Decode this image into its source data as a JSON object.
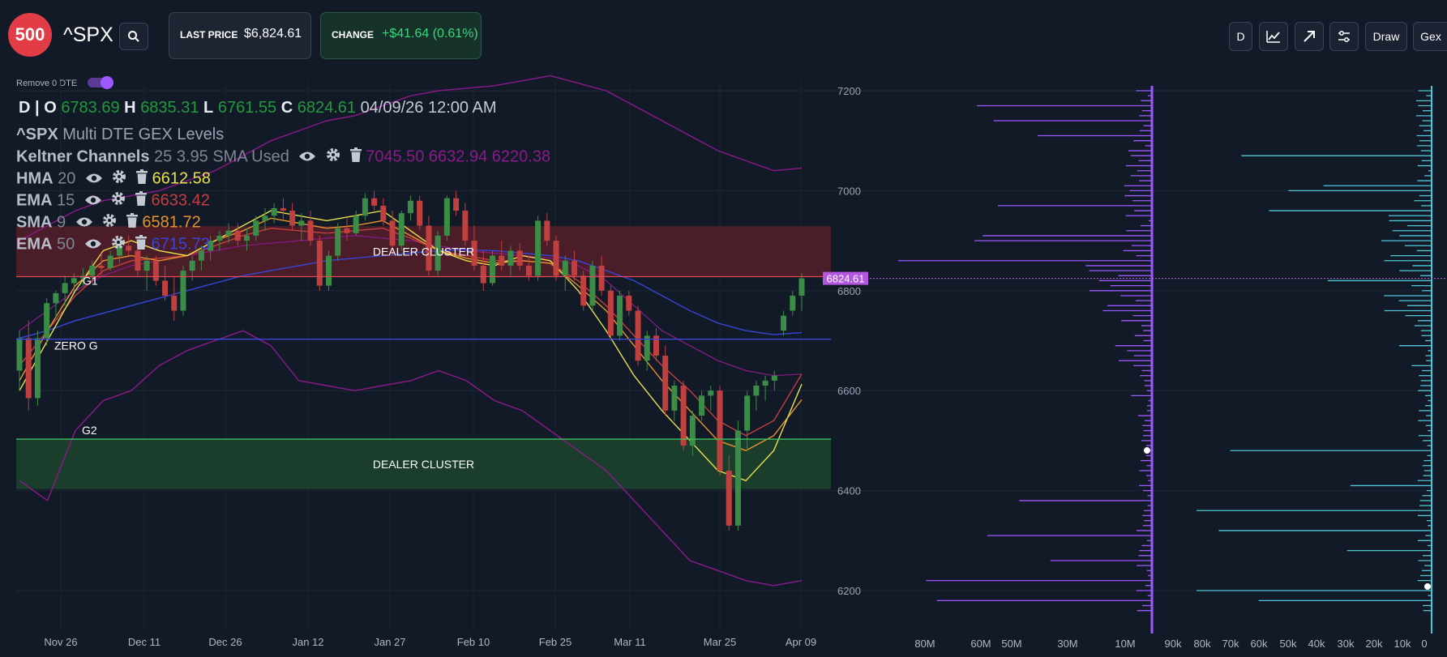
{
  "header": {
    "logo_text": "500",
    "ticker": "^SPX",
    "search_icon": "search-icon",
    "last_price_label": "LAST PRICE",
    "last_price_value": "$6,824.61",
    "change_label": "CHANGE",
    "change_value": "+$41.64 (0.61%)",
    "change_color": "#34d97a",
    "buttons": {
      "interval": "D",
      "indicators_icon": "line-chart-icon",
      "trend_icon": "arrow-up-right-icon",
      "settings_icon": "sliders-icon",
      "draw": "Draw",
      "gex": "Gex"
    }
  },
  "toggle": {
    "label": "Remove 0 DTE",
    "on": true
  },
  "ohlc": {
    "period": "D",
    "o_label": "O",
    "o": "6783.69",
    "h_label": "H",
    "h": "6835.31",
    "l_label": "L",
    "l": "6761.55",
    "c_label": "C",
    "c": "6824.61",
    "datetime": "04/09/26 12:00 AM"
  },
  "indicators": [
    {
      "name": "^SPX",
      "params": "Multi DTE GEX Levels",
      "values": "",
      "color": "#9aa2b1"
    },
    {
      "name": "Keltner Channels",
      "params": "25 3.95 SMA Used",
      "values": "7045.50 6632.94 6220.38",
      "color": "#8a1a8a"
    },
    {
      "name": "HMA",
      "params": "20",
      "values": "6612.58",
      "color": "#e7e04a"
    },
    {
      "name": "EMA",
      "params": "15",
      "values": "6633.42",
      "color": "#c43f3f"
    },
    {
      "name": "SMA",
      "params": "9",
      "values": "6581.72",
      "color": "#e8912b"
    },
    {
      "name": "EMA",
      "params": "50",
      "values": "6715.73",
      "color": "#3646d8"
    }
  ],
  "levels": {
    "g1": "G1",
    "zero_g": "ZERO G",
    "g2": "G2",
    "dealer_cluster_top": "DEALER CLUSTER",
    "dealer_cluster_bottom": "DEALER CLUSTER",
    "price_tag": "6824.61"
  },
  "chart_data": {
    "type": "candlestick",
    "y_axis": {
      "ticks": [
        "7200",
        "7000",
        "6800",
        "6600",
        "6400",
        "6200"
      ],
      "range": [
        6120,
        7220
      ]
    },
    "x_axis": {
      "ticks": [
        "Nov 26",
        "Dec 11",
        "Dec 26",
        "Jan 12",
        "Jan 27",
        "Feb 10",
        "Feb 25",
        "Mar 11",
        "Mar 25",
        "Apr 09"
      ]
    },
    "levels": {
      "g1": 6828,
      "zero_g": 6703,
      "g2": 6503
    },
    "zones": [
      {
        "label": "DEALER CLUSTER",
        "from": 6828,
        "to": 6929,
        "color": "#5e1f2a"
      },
      {
        "label": "DEALER CLUSTER",
        "from": 6403,
        "to": 6503,
        "color": "#1e4a2f"
      }
    ],
    "last_price": 6824.61,
    "candles": [
      [
        6640,
        6720,
        6600,
        6705
      ],
      [
        6705,
        6740,
        6560,
        6585
      ],
      [
        6585,
        6720,
        6570,
        6705
      ],
      [
        6705,
        6785,
        6690,
        6775
      ],
      [
        6775,
        6800,
        6745,
        6795
      ],
      [
        6795,
        6830,
        6770,
        6815
      ],
      [
        6815,
        6835,
        6800,
        6825
      ],
      [
        6825,
        6845,
        6810,
        6830
      ],
      [
        6830,
        6860,
        6815,
        6850
      ],
      [
        6850,
        6875,
        6830,
        6845
      ],
      [
        6845,
        6880,
        6840,
        6870
      ],
      [
        6870,
        6900,
        6855,
        6890
      ],
      [
        6890,
        6910,
        6870,
        6880
      ],
      [
        6880,
        6900,
        6830,
        6840
      ],
      [
        6840,
        6870,
        6800,
        6860
      ],
      [
        6860,
        6870,
        6810,
        6820
      ],
      [
        6820,
        6850,
        6780,
        6790
      ],
      [
        6790,
        6830,
        6740,
        6760
      ],
      [
        6760,
        6850,
        6750,
        6840
      ],
      [
        6840,
        6870,
        6820,
        6860
      ],
      [
        6860,
        6890,
        6840,
        6880
      ],
      [
        6880,
        6910,
        6860,
        6900
      ],
      [
        6900,
        6920,
        6880,
        6910
      ],
      [
        6910,
        6935,
        6895,
        6920
      ],
      [
        6920,
        6935,
        6890,
        6900
      ],
      [
        6900,
        6925,
        6880,
        6910
      ],
      [
        6910,
        6950,
        6900,
        6940
      ],
      [
        6940,
        6965,
        6920,
        6950
      ],
      [
        6950,
        6975,
        6935,
        6965
      ],
      [
        6965,
        6985,
        6940,
        6960
      ],
      [
        6960,
        6975,
        6920,
        6930
      ],
      [
        6930,
        6955,
        6900,
        6940
      ],
      [
        6940,
        6960,
        6890,
        6900
      ],
      [
        6900,
        6910,
        6800,
        6810
      ],
      [
        6810,
        6880,
        6800,
        6870
      ],
      [
        6870,
        6935,
        6860,
        6925
      ],
      [
        6925,
        6945,
        6900,
        6915
      ],
      [
        6915,
        6960,
        6910,
        6950
      ],
      [
        6950,
        6995,
        6940,
        6985
      ],
      [
        6985,
        7000,
        6960,
        6970
      ],
      [
        6970,
        6985,
        6930,
        6940
      ],
      [
        6940,
        6960,
        6870,
        6890
      ],
      [
        6890,
        6960,
        6880,
        6955
      ],
      [
        6955,
        6990,
        6940,
        6980
      ],
      [
        6980,
        6990,
        6920,
        6930
      ],
      [
        6930,
        6950,
        6830,
        6840
      ],
      [
        6840,
        6920,
        6830,
        6910
      ],
      [
        6910,
        6990,
        6900,
        6985
      ],
      [
        6985,
        7000,
        6950,
        6960
      ],
      [
        6960,
        6975,
        6890,
        6900
      ],
      [
        6900,
        6930,
        6840,
        6850
      ],
      [
        6850,
        6880,
        6800,
        6815
      ],
      [
        6815,
        6880,
        6810,
        6870
      ],
      [
        6870,
        6900,
        6840,
        6850
      ],
      [
        6850,
        6890,
        6830,
        6880
      ],
      [
        6880,
        6895,
        6840,
        6850
      ],
      [
        6850,
        6870,
        6820,
        6830
      ],
      [
        6830,
        6950,
        6820,
        6940
      ],
      [
        6940,
        6955,
        6890,
        6900
      ],
      [
        6900,
        6910,
        6820,
        6830
      ],
      [
        6830,
        6870,
        6800,
        6860
      ],
      [
        6860,
        6880,
        6820,
        6830
      ],
      [
        6830,
        6840,
        6760,
        6770
      ],
      [
        6770,
        6860,
        6760,
        6850
      ],
      [
        6850,
        6870,
        6790,
        6800
      ],
      [
        6800,
        6810,
        6700,
        6710
      ],
      [
        6710,
        6800,
        6700,
        6790
      ],
      [
        6790,
        6800,
        6750,
        6760
      ],
      [
        6760,
        6770,
        6650,
        6660
      ],
      [
        6660,
        6720,
        6640,
        6710
      ],
      [
        6710,
        6725,
        6660,
        6670
      ],
      [
        6670,
        6690,
        6550,
        6560
      ],
      [
        6560,
        6620,
        6540,
        6610
      ],
      [
        6610,
        6620,
        6480,
        6490
      ],
      [
        6490,
        6560,
        6470,
        6550
      ],
      [
        6550,
        6600,
        6540,
        6590
      ],
      [
        6590,
        6610,
        6560,
        6600
      ],
      [
        6600,
        6610,
        6430,
        6440
      ],
      [
        6440,
        6470,
        6320,
        6330
      ],
      [
        6330,
        6540,
        6320,
        6520
      ],
      [
        6520,
        6600,
        6480,
        6590
      ],
      [
        6590,
        6620,
        6560,
        6610
      ],
      [
        6610,
        6630,
        6580,
        6620
      ],
      [
        6620,
        6640,
        6600,
        6630
      ],
      [
        6720,
        6760,
        6710,
        6750
      ],
      [
        6760,
        6800,
        6750,
        6790
      ],
      [
        6790,
        6835,
        6760,
        6824.61
      ]
    ],
    "keltner_upper": [
      6900,
      6930,
      6960,
      6980,
      6990,
      7000,
      7020,
      7040,
      7070,
      7100,
      7120,
      7140,
      7150,
      7170,
      7190,
      7200,
      7205,
      7210,
      7220,
      7230,
      7215,
      7200,
      7170,
      7140,
      7110,
      7080,
      7060,
      7040,
      7045
    ],
    "keltner_mid": [
      6720,
      6760,
      6800,
      6830,
      6850,
      6860,
      6870,
      6880,
      6890,
      6895,
      6900,
      6905,
      6910,
      6905,
      6900,
      6890,
      6880,
      6875,
      6870,
      6865,
      6850,
      6820,
      6770,
      6720,
      6690,
      6660,
      6640,
      6630,
      6633
    ],
    "keltner_lower": [
      6420,
      6380,
      6520,
      6580,
      6600,
      6650,
      6680,
      6700,
      6720,
      6690,
      6620,
      6610,
      6600,
      6610,
      6620,
      6640,
      6620,
      6580,
      6560,
      6520,
      6480,
      6440,
      6380,
      6320,
      6260,
      6240,
      6220,
      6210,
      6220
    ],
    "ema50": [
      6705,
      6720,
      6740,
      6755,
      6770,
      6785,
      6800,
      6815,
      6830,
      6840,
      6850,
      6860,
      6865,
      6870,
      6875,
      6880,
      6882,
      6880,
      6875,
      6870,
      6860,
      6840,
      6820,
      6790,
      6760,
      6735,
      6720,
      6712,
      6716
    ],
    "hma20": [
      6600,
      6700,
      6800,
      6880,
      6900,
      6880,
      6870,
      6900,
      6930,
      6960,
      6950,
      6940,
      6950,
      6960,
      6920,
      6880,
      6860,
      6850,
      6870,
      6860,
      6800,
      6720,
      6630,
      6560,
      6500,
      6440,
      6420,
      6480,
      6613
    ],
    "ema15": [
      6650,
      6720,
      6790,
      6840,
      6860,
      6865,
      6870,
      6890,
      6910,
      6925,
      6920,
      6915,
      6920,
      6925,
      6905,
      6880,
      6870,
      6860,
      6860,
      6855,
      6820,
      6770,
      6710,
      6650,
      6600,
      6540,
      6510,
      6540,
      6633
    ],
    "sma9": [
      6620,
      6720,
      6810,
      6860,
      6870,
      6860,
      6870,
      6900,
      6920,
      6945,
      6935,
      6925,
      6930,
      6940,
      6910,
      6880,
      6865,
      6855,
      6860,
      6855,
      6810,
      6760,
      6690,
      6620,
      6560,
      6500,
      6480,
      6510,
      6582
    ],
    "gex_profile": {
      "left_axis_ticks": [
        "80M",
        "60M",
        "50M",
        "30M",
        "10M"
      ],
      "right_axis_ticks": [
        "90k",
        "80k",
        "70k",
        "60k",
        "50k",
        "40k",
        "30k",
        "20k",
        "10k",
        "0"
      ],
      "put_color": "#9b59ff",
      "call_color": "#4fc6d6"
    }
  }
}
